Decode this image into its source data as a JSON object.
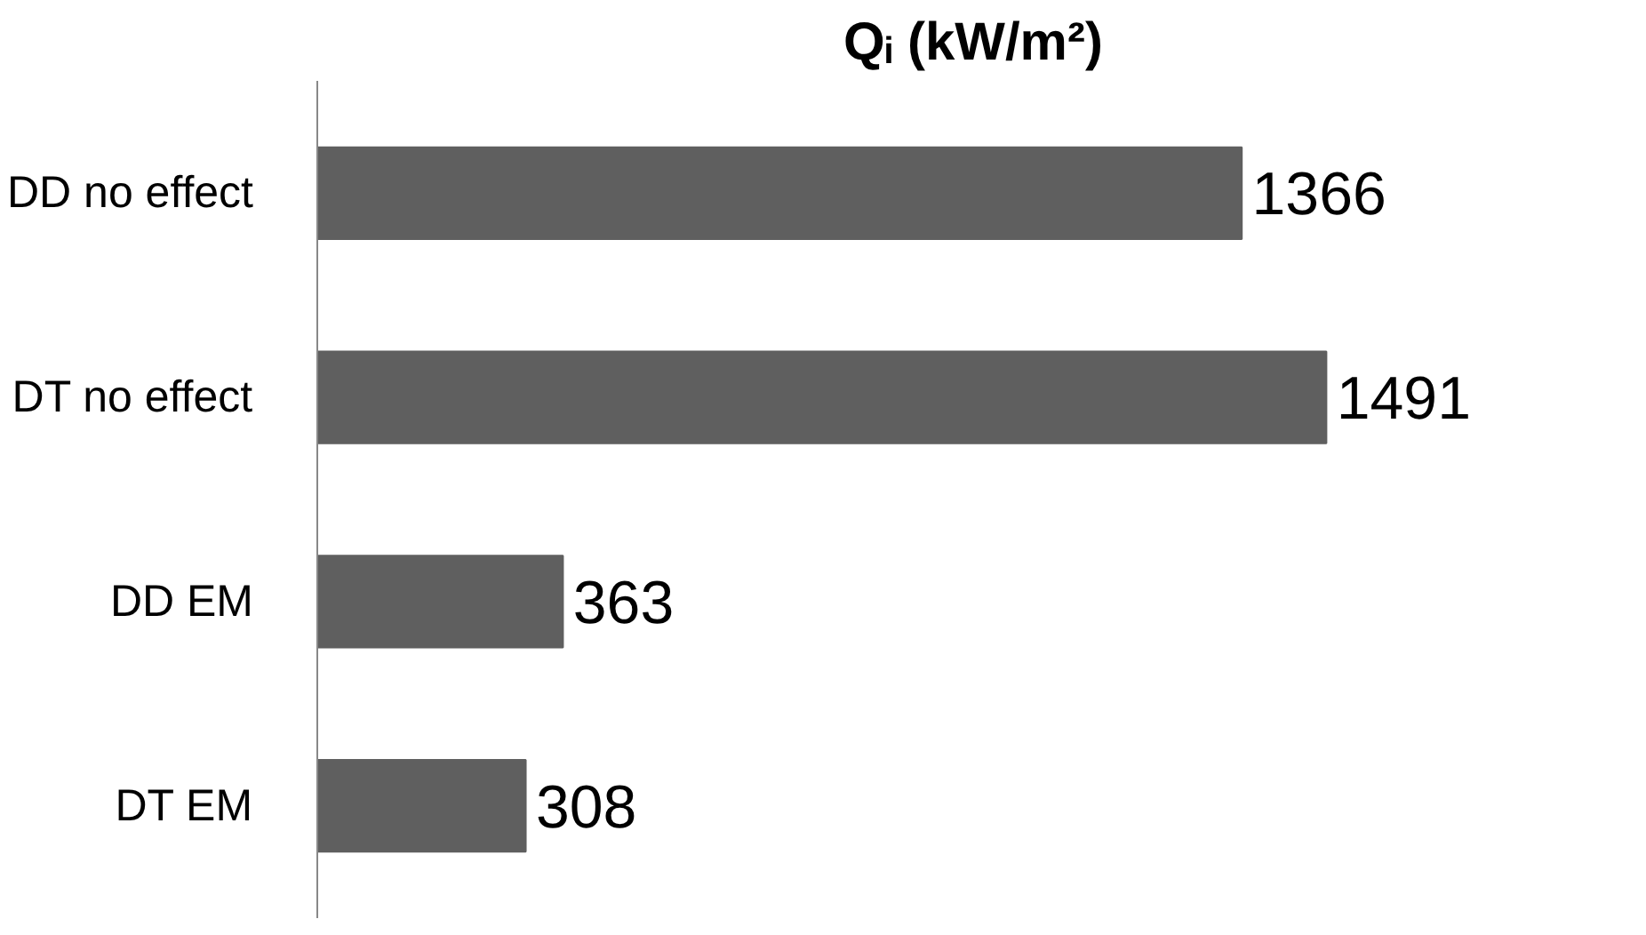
{
  "chart_data": {
    "type": "bar",
    "orientation": "horizontal",
    "title": "Qᵢ (kW/m²)",
    "categories": [
      "DD no effect",
      "DT no effect",
      "DD EM",
      "DT EM"
    ],
    "values": [
      1366,
      1491,
      363,
      308
    ],
    "color": "#5f5f5f",
    "data_labels": true,
    "tick_labels": "y",
    "grid": false
  }
}
